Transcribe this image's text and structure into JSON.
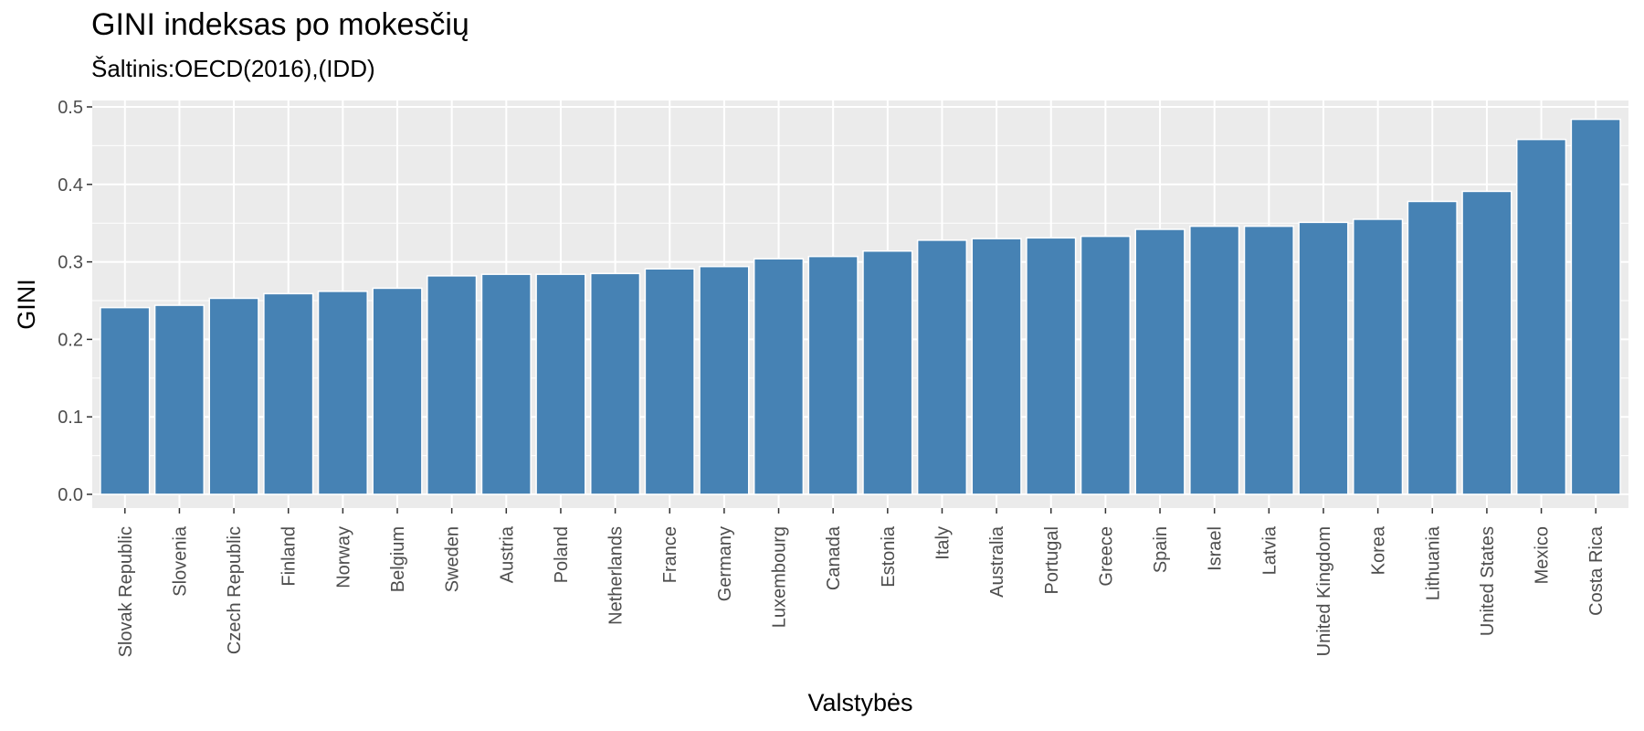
{
  "chart_data": {
    "type": "bar",
    "title": "GINI indeksas po mokesčių",
    "subtitle": "Šaltinis:OECD(2016),(IDD)",
    "xlabel": "Valstybės",
    "ylabel": "GINI",
    "ylim": [
      0,
      0.5
    ],
    "yticks": [
      "0.0",
      "0.1",
      "0.2",
      "0.3",
      "0.4",
      "0.5"
    ],
    "grid": true,
    "bar_color": "#4682B4",
    "panel_background": "#EBEBEB",
    "categories": [
      "Slovak Republic",
      "Slovenia",
      "Czech Republic",
      "Finland",
      "Norway",
      "Belgium",
      "Sweden",
      "Austria",
      "Poland",
      "Netherlands",
      "France",
      "Germany",
      "Luxembourg",
      "Canada",
      "Estonia",
      "Italy",
      "Australia",
      "Portugal",
      "Greece",
      "Spain",
      "Israel",
      "Latvia",
      "United Kingdom",
      "Korea",
      "Lithuania",
      "United States",
      "Mexico",
      "Costa Rica"
    ],
    "values": [
      0.241,
      0.244,
      0.253,
      0.259,
      0.262,
      0.266,
      0.282,
      0.284,
      0.284,
      0.285,
      0.291,
      0.294,
      0.304,
      0.307,
      0.314,
      0.328,
      0.33,
      0.331,
      0.333,
      0.342,
      0.346,
      0.346,
      0.351,
      0.355,
      0.378,
      0.391,
      0.458,
      0.484
    ]
  }
}
